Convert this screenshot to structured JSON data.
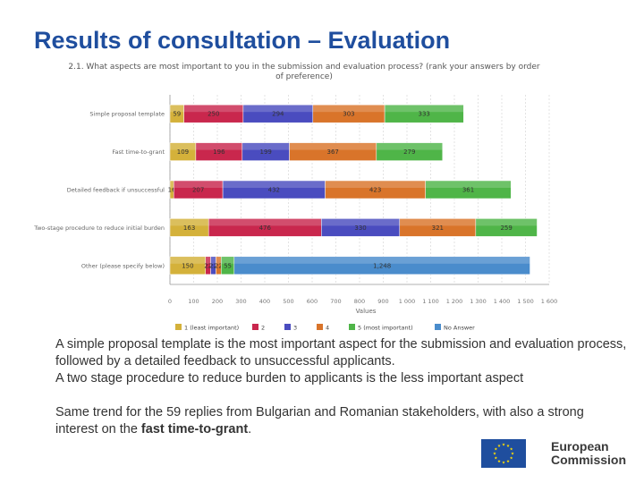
{
  "slide": {
    "title": "Results of consultation – Evaluation"
  },
  "chart_data": {
    "type": "bar",
    "orientation": "horizontal",
    "stacked": true,
    "title": "2.1. What aspects are most important to you in the submission and evaluation process? (rank your answers by order of preference)",
    "title_lines": [
      "2.1. What aspects are most important to you in the submission and evaluation process? (rank your answers by order",
      "of preference)"
    ],
    "categories": [
      "Simple proposal template",
      "Fast time-to-grant",
      "Detailed feedback if unsuccessful",
      "Two-stage procedure to reduce initial burden",
      "Other (please specify below)"
    ],
    "series": [
      {
        "name": "1 (least important)",
        "color": "#d4b13a",
        "values": [
          59,
          109,
          16,
          163,
          150
        ],
        "labels": [
          "59",
          "109",
          "16",
          "163",
          "150"
        ]
      },
      {
        "name": "2",
        "color": "#c9274d",
        "values": [
          250,
          196,
          207,
          476,
          22
        ],
        "labels": [
          "250",
          "196",
          "207",
          "476",
          "22"
        ]
      },
      {
        "name": "3",
        "color": "#4a4cbf",
        "values": [
          294,
          199,
          432,
          330,
          22
        ],
        "labels": [
          "294",
          "199",
          "432",
          "330",
          "22"
        ]
      },
      {
        "name": "4",
        "color": "#d9742a",
        "values": [
          303,
          367,
          423,
          321,
          22
        ],
        "labels": [
          "303",
          "367",
          "423",
          "321",
          "22"
        ]
      },
      {
        "name": "5 (most important)",
        "color": "#4fb548",
        "values": [
          333,
          279,
          361,
          259,
          55
        ],
        "labels": [
          "333",
          "279",
          "361",
          "259",
          "55"
        ]
      },
      {
        "name": "No Answer",
        "color": "#4a8ccc",
        "values": [
          0,
          0,
          0,
          0,
          1248
        ],
        "labels": [
          "",
          "",
          "",
          "",
          "1,248"
        ]
      }
    ],
    "xlabel": "Values",
    "ylabel": "",
    "xlim": [
      0,
      1600
    ],
    "xticks": [
      0,
      100,
      200,
      300,
      400,
      500,
      600,
      700,
      800,
      900,
      1000,
      1100,
      1200,
      1300,
      1400,
      1500,
      1600
    ],
    "tick_labels": [
      "0",
      "100",
      "200",
      "300",
      "400",
      "500",
      "600",
      "700",
      "800",
      "900",
      "1 000",
      "1 100",
      "1 200",
      "1 300",
      "1 400",
      "1 500",
      "1 600"
    ],
    "grid": true,
    "legend": "bottom"
  },
  "description": {
    "para1": "A simple proposal template is the most important aspect for the submission and evaluation process, followed by a detailed feedback to unsuccessful applicants.",
    "para2": "A two stage procedure to reduce burden to applicants is the less important aspect",
    "para3_before": "Same trend for the 59 replies from Bulgarian and Romanian stakeholders, with also a strong interest on the ",
    "para3_bold": "fast time-to-grant",
    "para3_after": "."
  },
  "logo": {
    "line1": "European",
    "line2": "Commission"
  }
}
